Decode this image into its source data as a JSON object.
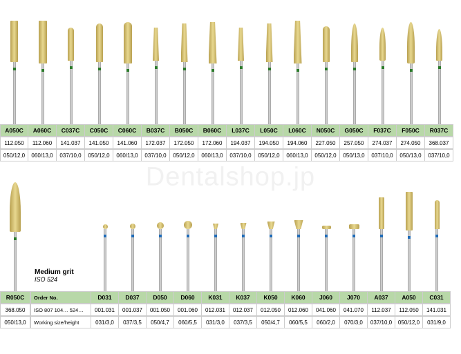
{
  "watermark": "Dentalshop.jp",
  "top_burs": [
    {
      "code": "A050C",
      "r1": "112.050",
      "r2": "050/12,0",
      "shape": "cylinder",
      "tipH": 60,
      "tipW": 11,
      "shaftH": 90
    },
    {
      "code": "A060C",
      "r1": "112.060",
      "r2": "060/13,0",
      "shape": "cylinder",
      "tipH": 62,
      "tipW": 12,
      "shaftH": 88
    },
    {
      "code": "C037C",
      "r1": "141.037",
      "r2": "037/10,0",
      "shape": "round-top",
      "tipH": 48,
      "tipW": 9,
      "shaftH": 92
    },
    {
      "code": "C050C",
      "r1": "141.050",
      "r2": "050/12,0",
      "shape": "round-top",
      "tipH": 56,
      "tipW": 10,
      "shaftH": 90
    },
    {
      "code": "C060C",
      "r1": "141.060",
      "r2": "060/13,0",
      "shape": "round-top",
      "tipH": 60,
      "tipW": 12,
      "shaftH": 88
    },
    {
      "code": "B037C",
      "r1": "172.037",
      "r2": "037/10,0",
      "shape": "taper",
      "tipH": 48,
      "tipW": 9,
      "shaftH": 92
    },
    {
      "code": "B050C",
      "r1": "172.050",
      "r2": "050/12,0",
      "shape": "taper",
      "tipH": 56,
      "tipW": 10,
      "shaftH": 90
    },
    {
      "code": "B060C",
      "r1": "172.060",
      "r2": "060/13,0",
      "shape": "taper",
      "tipH": 60,
      "tipW": 12,
      "shaftH": 88
    },
    {
      "code": "L037C",
      "r1": "194.037",
      "r2": "037/10,0",
      "shape": "taper",
      "tipH": 48,
      "tipW": 9,
      "shaftH": 92
    },
    {
      "code": "L050C",
      "r1": "194.050",
      "r2": "050/12,0",
      "shape": "taper",
      "tipH": 56,
      "tipW": 10,
      "shaftH": 90
    },
    {
      "code": "L060C",
      "r1": "194.060",
      "r2": "060/13,0",
      "shape": "taper",
      "tipH": 62,
      "tipW": 12,
      "shaftH": 88
    },
    {
      "code": "N050C",
      "r1": "227.050",
      "r2": "050/12,0",
      "shape": "dome",
      "tipH": 52,
      "tipW": 10,
      "shaftH": 90
    },
    {
      "code": "G050C",
      "r1": "257.050",
      "r2": "050/13,0",
      "shape": "bullet",
      "tipH": 56,
      "tipW": 10,
      "shaftH": 90
    },
    {
      "code": "F037C",
      "r1": "274.037",
      "r2": "037/10,0",
      "shape": "flame",
      "tipH": 48,
      "tipW": 9,
      "shaftH": 92
    },
    {
      "code": "F050C",
      "r1": "274.050",
      "r2": "050/13,0",
      "shape": "flame",
      "tipH": 60,
      "tipW": 11,
      "shaftH": 88
    },
    {
      "code": "R037C",
      "r1": "368.037",
      "r2": "037/10,0",
      "shape": "bullet",
      "tipH": 46,
      "tipW": 9,
      "shaftH": 92
    }
  ],
  "bottom_left_bur": {
    "code": "R050C",
    "r1": "368.050",
    "r2": "050/13,0",
    "shape": "flame",
    "tipH": 72,
    "tipW": 16,
    "shaftH": 86
  },
  "info_col": {
    "medium_grit": "Medium grit",
    "iso": "ISO 524",
    "header": "Order No.",
    "r1": "ISO 807 104… 524…",
    "r2": "Working size/height"
  },
  "bottom_burs": [
    {
      "code": "D031",
      "r1": "001.031",
      "r2": "031/3,0",
      "shape": "ball",
      "tipH": 7,
      "tipW": 7,
      "shaftH": 90
    },
    {
      "code": "D037",
      "r1": "001.037",
      "r2": "037/3,5",
      "shape": "ball",
      "tipH": 8,
      "tipW": 8,
      "shaftH": 90
    },
    {
      "code": "D050",
      "r1": "001.050",
      "r2": "050/4,7",
      "shape": "ball",
      "tipH": 10,
      "tipW": 10,
      "shaftH": 90
    },
    {
      "code": "D060",
      "r1": "001.060",
      "r2": "060/5,5",
      "shape": "ball",
      "tipH": 12,
      "tipW": 12,
      "shaftH": 90
    },
    {
      "code": "K031",
      "r1": "012.031",
      "r2": "031/3,0",
      "shape": "invcone",
      "tipH": 8,
      "tipW": 8,
      "shaftH": 90
    },
    {
      "code": "K037",
      "r1": "012.037",
      "r2": "037/3,5",
      "shape": "invcone",
      "tipH": 9,
      "tipW": 9,
      "shaftH": 90
    },
    {
      "code": "K050",
      "r1": "012.050",
      "r2": "050/4,7",
      "shape": "invcone",
      "tipH": 11,
      "tipW": 11,
      "shaftH": 90
    },
    {
      "code": "K060",
      "r1": "012.060",
      "r2": "060/5,5",
      "shape": "invcone",
      "tipH": 13,
      "tipW": 13,
      "shaftH": 90
    },
    {
      "code": "J060",
      "r1": "041.060",
      "r2": "060/2,0",
      "shape": "wheel",
      "tipH": 5,
      "tipW": 13,
      "shaftH": 90
    },
    {
      "code": "J070",
      "r1": "041.070",
      "r2": "070/3,0",
      "shape": "wheel",
      "tipH": 7,
      "tipW": 15,
      "shaftH": 90
    },
    {
      "code": "A037",
      "r1": "112.037",
      "r2": "037/10,0",
      "shape": "cylinder",
      "tipH": 46,
      "tipW": 8,
      "shaftH": 90
    },
    {
      "code": "A050",
      "r1": "112.050",
      "r2": "050/12,0",
      "shape": "cylinder",
      "tipH": 56,
      "tipW": 10,
      "shaftH": 88
    },
    {
      "code": "C031",
      "r1": "141.031",
      "r2": "031/9,0",
      "shape": "round-top",
      "tipH": 42,
      "tipW": 7,
      "shaftH": 90
    }
  ],
  "colors": {
    "header_bg": "#b8d8a8",
    "tip_gold": "#c8b060",
    "band_top": "#2a7a2a",
    "band_bottom": "#1e6bb8"
  }
}
